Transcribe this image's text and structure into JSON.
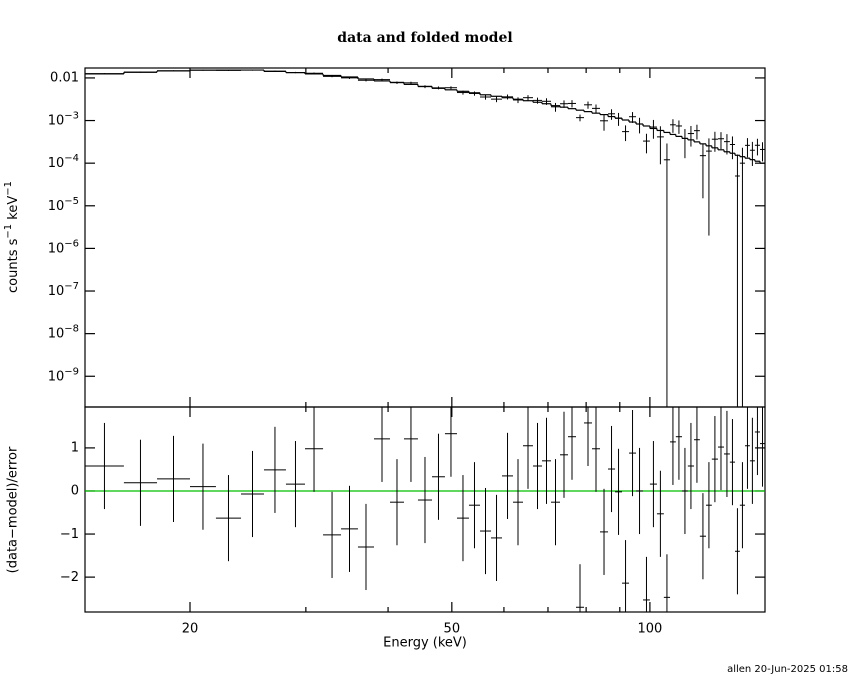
{
  "chart_data": [
    {
      "type": "spectrum",
      "title": "data and folded model",
      "ylabel": [
        {
          "text": "counts s"
        },
        {
          "text": "−1",
          "sup": true
        },
        {
          "text": " keV"
        },
        {
          "text": "−1",
          "sup": true
        }
      ],
      "log_x": true,
      "log_y": true,
      "xlim": [
        13.85,
        149.6
      ],
      "ylim": [
        1.9e-10,
        0.0171
      ],
      "yticks": [
        0.01,
        {
          "value": 0.001,
          "label": "10",
          "exponent": "−3"
        },
        {
          "value": 0.0001,
          "label": "10",
          "exponent": "−4"
        },
        {
          "value": 1e-05,
          "label": "10",
          "exponent": "−5"
        },
        {
          "value": 1e-06,
          "label": "10",
          "exponent": "−6"
        },
        {
          "value": 1e-07,
          "label": "10",
          "exponent": "−7"
        },
        {
          "value": 1e-08,
          "label": "10",
          "exponent": "−8"
        },
        {
          "value": 1e-09,
          "label": "10",
          "exponent": "−9"
        }
      ],
      "bins": [
        13.85,
        15.87,
        17.82,
        20.0,
        21.9,
        23.91,
        25.91,
        27.98,
        29.91,
        31.86,
        33.93,
        36.0,
        38.08,
        40.27,
        42.29,
        44.41,
        46.65,
        48.81,
        50.91,
        53.09,
        55.18,
        57.35,
        59.6,
        61.94,
        64.14,
        66.42,
        68.55,
        70.74,
        73.01,
        75.08,
        77.21,
        79.41,
        81.66,
        83.98,
        86.37,
        88.51,
        90.71,
        92.96,
        95.26,
        97.63,
        100.0,
        102.5,
        105.0,
        107.3,
        109.5,
        111.9,
        114.2,
        116.7,
        119.1,
        121.7,
        124.2,
        126.9,
        129.6,
        132.3,
        134.7,
        137.0,
        139.5,
        141.9,
        144.4,
        147.0,
        149.6
      ],
      "data": {
        "color": "#000000",
        "values": [
          0.0126,
          0.0137,
          0.0147,
          0.0152,
          0.015,
          0.0153,
          0.0144,
          0.0134,
          0.0129,
          0.0109,
          0.01,
          0.0088,
          0.00913,
          0.00773,
          0.00766,
          0.00624,
          0.00585,
          0.00589,
          0.00454,
          0.00432,
          0.00357,
          0.00318,
          0.0036,
          0.00304,
          0.00344,
          0.00297,
          0.00283,
          0.0021,
          0.00248,
          0.00252,
          0.00117,
          0.00234,
          0.00193,
          0.000987,
          0.00144,
          0.00113,
          0.00055,
          0.00123,
          0.00083,
          0.00033,
          0.000704,
          0.000414,
          0.00012,
          0.000795,
          0.000746,
          0.000381,
          0.000495,
          0.000579,
          0.00015,
          0.000192,
          0.000365,
          0.000374,
          0.00032,
          0.000274,
          5e-05,
          0.0001,
          0.000262,
          0.000201,
          0.000263,
          0.00021
        ],
        "errors": [
          0.00037,
          0.00041,
          0.00044,
          0.00046,
          0.00046,
          0.00046,
          0.0005,
          0.00047,
          0.0005,
          0.00051,
          0.00053,
          0.00052,
          0.00051,
          0.00051,
          0.00049,
          0.00048,
          0.00046,
          0.00047,
          0.00049,
          0.00049,
          0.00048,
          0.00048,
          0.00048,
          0.00047,
          0.0005,
          0.00048,
          0.0005,
          0.00049,
          0.00049,
          0.00049,
          0.00021,
          0.00045,
          0.00045,
          0.00041,
          0.0004,
          0.00038,
          0.00022,
          0.00035,
          0.00033,
          0.00016,
          0.00033,
          0.00032,
          0.00017,
          0.00028,
          0.00026,
          0.00025,
          0.00025,
          0.00022,
          0.000135,
          0.00019,
          0.00018,
          0.00016,
          0.00016,
          0.00015,
          0.00011,
          0.00013,
          0.000125,
          0.000115,
          0.000111,
          0.0001
        ]
      },
      "model": {
        "color": "#000000",
        "values": [
          0.0124,
          0.0136,
          0.0146,
          0.0152,
          0.0153,
          0.0153,
          0.0142,
          0.0133,
          0.0124,
          0.0114,
          0.0105,
          0.00948,
          0.00851,
          0.00786,
          0.00706,
          0.00634,
          0.0057,
          0.00526,
          0.00485,
          0.00448,
          0.00402,
          0.00371,
          0.00343,
          0.00316,
          0.00292,
          0.00269,
          0.00248,
          0.00223,
          0.00206,
          0.0019,
          0.00175,
          0.00162,
          0.00149,
          0.00138,
          0.00124,
          0.00114,
          0.00103,
          0.000923,
          0.00083,
          0.000745,
          0.000652,
          0.000585,
          0.000526,
          0.000472,
          0.000425,
          0.000381,
          0.000352,
          0.000316,
          0.000284,
          0.000255,
          0.000229,
          0.000206,
          0.000185,
          0.000171,
          0.000153,
          0.000142,
          0.000131,
          0.000121,
          0.000111,
          0.0001
        ]
      }
    },
    {
      "type": "residual",
      "ylabel": "(data−model)/error",
      "xlabel": "Energy (keV)",
      "log_x": true,
      "xlim": [
        13.85,
        149.6
      ],
      "ylim": [
        -2.81,
        1.95
      ],
      "xticks": [
        20,
        50,
        100
      ],
      "xminorticks": [
        30,
        40,
        60,
        70,
        80,
        90
      ],
      "yticks": [
        {
          "value": -2,
          "label": "−2"
        },
        {
          "value": -1,
          "label": "−1"
        },
        0,
        1
      ],
      "data": {
        "color": "#000000",
        "values": [
          0.58,
          0.19,
          0.28,
          0.1,
          -0.63,
          -0.07,
          0.49,
          0.16,
          0.98,
          -1.02,
          -0.88,
          -1.3,
          1.21,
          -0.26,
          1.21,
          -0.21,
          0.33,
          1.33,
          -0.63,
          -0.33,
          -0.93,
          -1.09,
          0.35,
          -0.26,
          1.05,
          0.58,
          0.7,
          -0.26,
          0.84,
          1.26,
          -2.7,
          1.58,
          0.98,
          -0.95,
          0.51,
          -0.02,
          -2.14,
          0.88,
          0.0,
          -2.53,
          0.16,
          -0.53,
          -2.47,
          1.14,
          1.26,
          0.0,
          0.58,
          1.19,
          -1.05,
          -0.33,
          0.74,
          1.02,
          0.86,
          0.67,
          -1.4,
          -0.33,
          1.05,
          0.7,
          1.37,
          1.1
        ],
        "errors": [
          1,
          1,
          1,
          1,
          1,
          1,
          1,
          1,
          1,
          1,
          1,
          1,
          1,
          1,
          1,
          1,
          1,
          1,
          1,
          1,
          1,
          1,
          1,
          1,
          1,
          1,
          1,
          1,
          1,
          1,
          1,
          1,
          1,
          1,
          1,
          1,
          1,
          1,
          1,
          1,
          1,
          1,
          1,
          1,
          1,
          1,
          1,
          1,
          1,
          1,
          1,
          1,
          1,
          1,
          1,
          1,
          1,
          1,
          1,
          1
        ]
      },
      "reference_line": {
        "value": 0,
        "color": "#00c000"
      }
    }
  ],
  "footer": "allen 20-Jun-2025 01:58"
}
